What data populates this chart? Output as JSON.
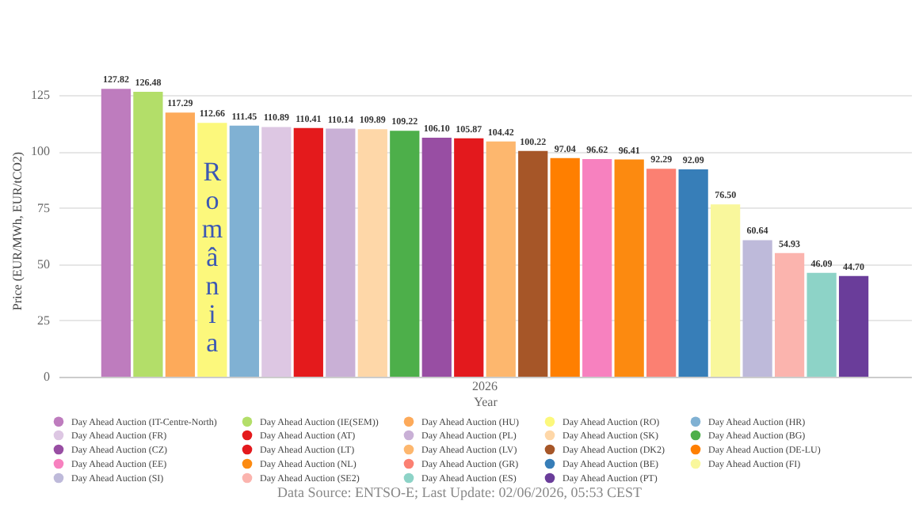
{
  "chart_data": {
    "type": "bar",
    "xlabel": "Year",
    "ylabel": "Price (EUR/MWh, EUR/tCO2)",
    "categories": [
      "2026"
    ],
    "series": [
      {
        "name": "Day Ahead Auction (IT-Centre-North)",
        "color": "#be7cbe",
        "values": [
          127.82
        ]
      },
      {
        "name": "Day Ahead Auction (IE(SEM))",
        "color": "#b3de69",
        "values": [
          126.48
        ]
      },
      {
        "name": "Day Ahead Auction (HU)",
        "color": "#fdaa5a",
        "values": [
          117.29
        ]
      },
      {
        "name": "Day Ahead Auction (RO)",
        "color": "#fcf87c",
        "values": [
          112.66
        ]
      },
      {
        "name": "Day Ahead Auction (HR)",
        "color": "#80b1d3",
        "values": [
          111.45
        ]
      },
      {
        "name": "Day Ahead Auction (FR)",
        "color": "#ddc7e3",
        "values": [
          110.89
        ]
      },
      {
        "name": "Day Ahead Auction (AT)",
        "color": "#e41a1c",
        "values": [
          110.41
        ]
      },
      {
        "name": "Day Ahead Auction (PL)",
        "color": "#c9b0d6",
        "values": [
          110.14
        ]
      },
      {
        "name": "Day Ahead Auction (SK)",
        "color": "#fed7a8",
        "values": [
          109.89
        ]
      },
      {
        "name": "Day Ahead Auction (BG)",
        "color": "#4daf4a",
        "values": [
          109.22
        ]
      },
      {
        "name": "Day Ahead Auction (CZ)",
        "color": "#984ea3",
        "values": [
          106.1
        ],
        "value_labels": [
          "106.10"
        ]
      },
      {
        "name": "Day Ahead Auction (LT)",
        "color": "#e3191d",
        "values": [
          105.87
        ]
      },
      {
        "name": "Day Ahead Auction (LV)",
        "color": "#fdb76e",
        "values": [
          104.42
        ]
      },
      {
        "name": "Day Ahead Auction (DK2)",
        "color": "#a65628",
        "values": [
          100.22
        ]
      },
      {
        "name": "Day Ahead Auction (DE-LU)",
        "color": "#ff7f00",
        "values": [
          97.04
        ]
      },
      {
        "name": "Day Ahead Auction (EE)",
        "color": "#f781bf",
        "values": [
          96.62
        ]
      },
      {
        "name": "Day Ahead Auction (NL)",
        "color": "#fc8a10",
        "values": [
          96.41
        ]
      },
      {
        "name": "Day Ahead Auction (GR)",
        "color": "#fb8072",
        "values": [
          92.29
        ]
      },
      {
        "name": "Day Ahead Auction (BE)",
        "color": "#377eb8",
        "values": [
          92.09
        ]
      },
      {
        "name": "Day Ahead Auction (FI)",
        "color": "#f9f79c",
        "values": [
          76.5
        ],
        "value_labels": [
          "76.50"
        ]
      },
      {
        "name": "Day Ahead Auction (SI)",
        "color": "#bebada",
        "values": [
          60.64
        ]
      },
      {
        "name": "Day Ahead Auction (SE2)",
        "color": "#fbb4ae",
        "values": [
          54.93
        ]
      },
      {
        "name": "Day Ahead Auction (ES)",
        "color": "#8dd3c7",
        "values": [
          46.09
        ]
      },
      {
        "name": "Day Ahead Auction (PT)",
        "color": "#6a3d9a",
        "values": [
          44.7
        ],
        "value_labels": [
          "44.70"
        ]
      }
    ],
    "ylim": [
      0,
      130
    ],
    "yticks": [
      0,
      25,
      50,
      75,
      100,
      125
    ],
    "grid": "y",
    "legend": "bottom",
    "data_labels": true,
    "annotations": [
      "România",
      "Data Source: ENTSO-E; Last Update: 02/06/2026, 05:53 CEST"
    ]
  }
}
